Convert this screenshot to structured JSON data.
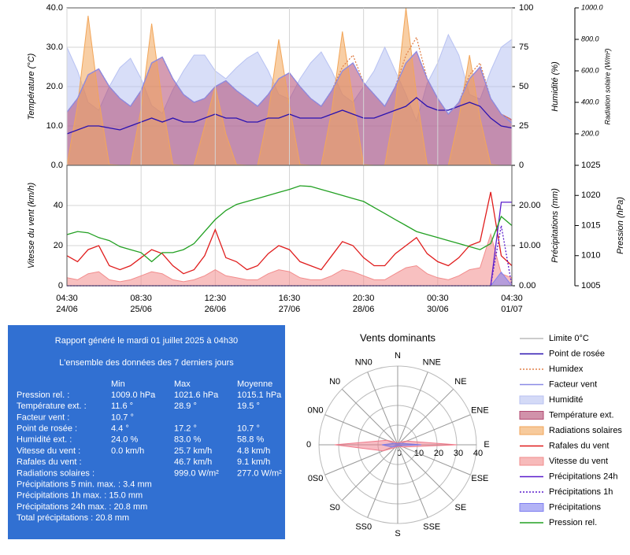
{
  "chart_data": [
    {
      "type": "line",
      "ylabel": "Température (°C)",
      "y2label": "Humidité (%)",
      "y3label": "Radiation solaire (W/m²)",
      "x": [
        "24/06 04:30",
        "24/06 08:30",
        "24/06 12:30",
        "24/06 16:30",
        "24/06 20:30",
        "25/06 00:30",
        "25/06 04:30",
        "25/06 08:30",
        "25/06 12:30",
        "25/06 16:30",
        "25/06 20:30",
        "26/06 00:30",
        "26/06 04:30",
        "26/06 08:30",
        "26/06 12:30",
        "26/06 16:30",
        "26/06 20:30",
        "27/06 00:30",
        "27/06 04:30",
        "27/06 08:30",
        "27/06 12:30",
        "27/06 16:30",
        "27/06 20:30",
        "28/06 00:30",
        "28/06 04:30",
        "28/06 08:30",
        "28/06 12:30",
        "28/06 16:30",
        "28/06 20:30",
        "29/06 00:30",
        "29/06 04:30",
        "29/06 08:30",
        "29/06 12:30",
        "29/06 16:30",
        "29/06 20:30",
        "30/06 00:30",
        "30/06 04:30",
        "30/06 08:30",
        "30/06 12:30",
        "30/06 16:30",
        "30/06 20:30",
        "01/07 00:30",
        "01/07 04:30"
      ],
      "ylim": [
        0,
        40
      ],
      "yticks": [
        {
          "value": 0,
          "label": "0.0"
        },
        {
          "value": 10,
          "label": "10.0"
        },
        {
          "value": 20,
          "label": "20.0"
        },
        {
          "value": 30,
          "label": "30.0"
        },
        {
          "value": 40,
          "label": "40.0"
        }
      ],
      "y2lim": [
        0,
        100
      ],
      "y2ticks": [
        0,
        25,
        50,
        75,
        100
      ],
      "y3lim": [
        0,
        1000
      ],
      "y3ticks": [
        {
          "value": 200,
          "label": "200.0"
        },
        {
          "value": 400,
          "label": "400.0"
        },
        {
          "value": 600,
          "label": "600.0"
        },
        {
          "value": 800,
          "label": "800.0"
        },
        {
          "value": 1000,
          "label": "1000.0"
        }
      ],
      "grid": true,
      "series": [
        {
          "name": "Limite 0°C",
          "color": "#bbbbbb",
          "style": "line",
          "axis": "y",
          "values": [
            0,
            0,
            0,
            0,
            0,
            0,
            0,
            0,
            0,
            0,
            0,
            0,
            0,
            0,
            0,
            0,
            0,
            0,
            0,
            0,
            0,
            0,
            0,
            0,
            0,
            0,
            0,
            0,
            0,
            0,
            0,
            0,
            0,
            0,
            0,
            0,
            0,
            0,
            0,
            0,
            0,
            0,
            0
          ]
        },
        {
          "name": "Point de rosée",
          "color": "#2a12b0",
          "style": "line",
          "axis": "y",
          "values": [
            8,
            9,
            10,
            10,
            9.5,
            9,
            10,
            11,
            12,
            11,
            12,
            11,
            11,
            12,
            13,
            12,
            12,
            11,
            11,
            12,
            12,
            13,
            12,
            12,
            12,
            13,
            14,
            13,
            12,
            12,
            13,
            14,
            15,
            17.2,
            15,
            14,
            14,
            15,
            16,
            15,
            12,
            10,
            9.5
          ]
        },
        {
          "name": "Humidex",
          "color": "#e0804a",
          "style": "dotted",
          "axis": "y",
          "values": [
            13.5,
            17,
            23,
            24.5,
            20,
            17,
            15,
            19,
            26,
            27.5,
            22,
            18,
            16,
            17,
            20,
            21.5,
            19,
            17,
            15,
            18,
            22,
            23.5,
            20,
            17,
            15,
            19,
            25,
            28,
            21,
            18,
            15,
            20,
            28,
            32.5,
            22,
            17,
            13,
            16,
            23,
            26,
            17,
            13,
            11.6
          ]
        },
        {
          "name": "Facteur vent",
          "color": "#8a8ae6",
          "style": "line",
          "axis": "y",
          "values": [
            13.5,
            17,
            23,
            24.5,
            20,
            17,
            15,
            19,
            26,
            27.5,
            22,
            18,
            16,
            17,
            20,
            21.5,
            19,
            17,
            15,
            18,
            22,
            23.5,
            20,
            17,
            15,
            19,
            24,
            26,
            21,
            18,
            15,
            20,
            26,
            28.9,
            22,
            17,
            13,
            16,
            22,
            25,
            17,
            13,
            10.7
          ]
        },
        {
          "name": "Humidité",
          "color": "#b8c2f2",
          "style": "area",
          "axis": "y2",
          "values": [
            75,
            60,
            40,
            35,
            50,
            62,
            68,
            55,
            38,
            33,
            48,
            60,
            70,
            70,
            60,
            55,
            62,
            68,
            72,
            60,
            45,
            42,
            55,
            65,
            72,
            60,
            45,
            40,
            50,
            60,
            75,
            60,
            45,
            28,
            52,
            65,
            83,
            70,
            45,
            42,
            60,
            75,
            80
          ]
        },
        {
          "name": "Température ext.",
          "color": "#b24a72",
          "style": "area",
          "axis": "y",
          "values": [
            13.5,
            17,
            23,
            24.5,
            20,
            17,
            15,
            19,
            26,
            27.5,
            22,
            18,
            16,
            17,
            20,
            21.5,
            19,
            17,
            15,
            18,
            22,
            23.5,
            20,
            17,
            15,
            19,
            24,
            26,
            21,
            18,
            15,
            20,
            26,
            28.9,
            22,
            17,
            13,
            16,
            22,
            25,
            17,
            13,
            11.6
          ]
        },
        {
          "name": "Radiations solaires",
          "color": "#f2a65a",
          "style": "area",
          "axis": "y3",
          "values": [
            0,
            380,
            950,
            420,
            5,
            0,
            0,
            360,
            900,
            400,
            5,
            0,
            0,
            250,
            500,
            200,
            5,
            0,
            0,
            330,
            800,
            380,
            5,
            0,
            0,
            350,
            850,
            420,
            5,
            0,
            0,
            380,
            999,
            450,
            5,
            0,
            0,
            300,
            700,
            300,
            5,
            0,
            0
          ]
        }
      ]
    },
    {
      "type": "line",
      "ylabel": "Vitesse du vent (km/h)",
      "y2label": "Précipitations (mm)",
      "y3label": "Pression (hPa)",
      "x": [
        "24/06 04:30",
        "24/06 08:30",
        "24/06 12:30",
        "24/06 16:30",
        "24/06 20:30",
        "25/06 00:30",
        "25/06 04:30",
        "25/06 08:30",
        "25/06 12:30",
        "25/06 16:30",
        "25/06 20:30",
        "26/06 00:30",
        "26/06 04:30",
        "26/06 08:30",
        "26/06 12:30",
        "26/06 16:30",
        "26/06 20:30",
        "27/06 00:30",
        "27/06 04:30",
        "27/06 08:30",
        "27/06 12:30",
        "27/06 16:30",
        "27/06 20:30",
        "28/06 00:30",
        "28/06 04:30",
        "28/06 08:30",
        "28/06 12:30",
        "28/06 16:30",
        "28/06 20:30",
        "29/06 00:30",
        "29/06 04:30",
        "29/06 08:30",
        "29/06 12:30",
        "29/06 16:30",
        "29/06 20:30",
        "30/06 00:30",
        "30/06 04:30",
        "30/06 08:30",
        "30/06 12:30",
        "30/06 16:30",
        "30/06 20:30",
        "01/07 00:30",
        "01/07 04:30"
      ],
      "xticks": [
        {
          "value": "24/06 04:30",
          "label": [
            "04:30",
            "24/06"
          ]
        },
        {
          "value": "25/06 08:30",
          "label": [
            "08:30",
            "25/06"
          ]
        },
        {
          "value": "26/06 12:30",
          "label": [
            "12:30",
            "26/06"
          ]
        },
        {
          "value": "27/06 16:30",
          "label": [
            "16:30",
            "27/06"
          ]
        },
        {
          "value": "28/06 20:30",
          "label": [
            "20:30",
            "28/06"
          ]
        },
        {
          "value": "30/06 00:30",
          "label": [
            "00:30",
            "30/06"
          ]
        },
        {
          "value": "01/07 04:30",
          "label": [
            "04:30",
            "01/07"
          ]
        }
      ],
      "ylim": [
        0,
        60
      ],
      "yticks": [
        0,
        20,
        40
      ],
      "y2lim": [
        0,
        30
      ],
      "y2ticks": [
        {
          "value": 0,
          "label": "0.00"
        },
        {
          "value": 10,
          "label": "10.00"
        },
        {
          "value": 20,
          "label": "20.00"
        }
      ],
      "y3lim": [
        1005,
        1025
      ],
      "y3ticks": [
        1005,
        1010,
        1015,
        1020,
        1025
      ],
      "grid": true,
      "series": [
        {
          "name": "Rafales du vent",
          "color": "#e01c1c",
          "style": "line",
          "axis": "y",
          "values": [
            15,
            12,
            18,
            20,
            10,
            8,
            10,
            14,
            18,
            16,
            10,
            6,
            8,
            15,
            28,
            14,
            12,
            8,
            10,
            16,
            20,
            18,
            12,
            10,
            8,
            15,
            22,
            20,
            14,
            10,
            10,
            16,
            20,
            24,
            16,
            12,
            10,
            14,
            20,
            22,
            46.7,
            15,
            10
          ]
        },
        {
          "name": "Vitesse du vent",
          "color": "#f28c8c",
          "style": "area",
          "axis": "y",
          "values": [
            4,
            3,
            6,
            7,
            3,
            2,
            3,
            5,
            7,
            6,
            3,
            2,
            3,
            5,
            8,
            5,
            4,
            3,
            3,
            6,
            8,
            7,
            4,
            3,
            3,
            5,
            8,
            7,
            5,
            3,
            3,
            6,
            9,
            10,
            6,
            4,
            3,
            5,
            8,
            9,
            25.7,
            6,
            4
          ]
        },
        {
          "name": "Précipitations 24h",
          "color": "#5a1ccc",
          "style": "line",
          "axis": "y2",
          "values": [
            0,
            0,
            0,
            0,
            0,
            0,
            0,
            0,
            0,
            0,
            0,
            0,
            0,
            0,
            0,
            0,
            0,
            0,
            0,
            0,
            0,
            0,
            0,
            0,
            0,
            0,
            0,
            0,
            0,
            0,
            0,
            0,
            0,
            0,
            0,
            0,
            0,
            0,
            0,
            0,
            0,
            20.8,
            20.8
          ]
        },
        {
          "name": "Précipitations 1h",
          "color": "#5a1ccc",
          "style": "dotted",
          "axis": "y2",
          "values": [
            0,
            0,
            0,
            0,
            0,
            0,
            0,
            0,
            0,
            0,
            0,
            0,
            0,
            0,
            0,
            0,
            0,
            0,
            0,
            0,
            0,
            0,
            0,
            0,
            0,
            0,
            0,
            0,
            0,
            0,
            0,
            0,
            0,
            0,
            0,
            0,
            0,
            0,
            0,
            0,
            0,
            15,
            0
          ]
        },
        {
          "name": "Précipitations",
          "color": "#8080f0",
          "style": "area",
          "axis": "y2",
          "values": [
            0,
            0,
            0,
            0,
            0,
            0,
            0,
            0,
            0,
            0,
            0,
            0,
            0,
            0,
            0,
            0,
            0,
            0,
            0,
            0,
            0,
            0,
            0,
            0,
            0,
            0,
            0,
            0,
            0,
            0,
            0,
            0,
            0,
            0,
            0,
            0,
            0,
            0,
            0,
            0,
            0,
            3.4,
            0
          ]
        },
        {
          "name": "Pression rel.",
          "color": "#22a022",
          "style": "line",
          "axis": "y3",
          "values": [
            1013.5,
            1014,
            1013.8,
            1013,
            1012.5,
            1011.5,
            1011,
            1010.5,
            1009,
            1010.5,
            1010.5,
            1011,
            1012,
            1014,
            1016,
            1017.5,
            1018.5,
            1019,
            1019.5,
            1020,
            1020.5,
            1021,
            1021.6,
            1021.5,
            1021,
            1020.5,
            1020,
            1019.5,
            1019,
            1018,
            1017,
            1016,
            1015,
            1014,
            1013.5,
            1013,
            1012.5,
            1012,
            1011.5,
            1011,
            1012,
            1016.5,
            1015
          ]
        }
      ]
    },
    {
      "type": "radar",
      "title": "Vents dominants",
      "categories": [
        "N",
        "NNE",
        "NE",
        "ENE",
        "E",
        "ESE",
        "SE",
        "SSE",
        "S",
        "SS0",
        "S0",
        "0S0",
        "0",
        "0N0",
        "N0",
        "NN0"
      ],
      "rlim": [
        0,
        40
      ],
      "rticks": [
        0,
        10,
        20,
        30,
        40
      ],
      "series": [
        {
          "color": "#f07a8a",
          "values": [
            1,
            1,
            2,
            5,
            30,
            3,
            1,
            1,
            1,
            1,
            2,
            8,
            32,
            6,
            2,
            1
          ]
        },
        {
          "color": "#7a7ae8",
          "values": [
            0.5,
            0.5,
            1,
            2,
            12,
            1,
            0.5,
            0.5,
            0.5,
            0.5,
            1,
            3,
            8,
            2,
            1,
            0.5
          ]
        }
      ]
    }
  ],
  "report": {
    "title": "Rapport généré le mardi 01 juillet 2025 à 04h30",
    "subtitle": "L'ensemble des données des 7 derniers jours",
    "headers": [
      "Min",
      "Max",
      "Moyenne"
    ],
    "rows": [
      [
        "Pression rel. :",
        "1009.0 hPa",
        "1021.6 hPa",
        "1015.1 hPa"
      ],
      [
        "Température ext. :",
        "11.6 °",
        "28.9 °",
        "19.5 °"
      ],
      [
        "Facteur vent :",
        "10.7 °",
        null,
        null
      ],
      [
        "Point de rosée :",
        "4.4 °",
        "17.2 °",
        "10.7 °"
      ],
      [
        "Humidité ext. :",
        "24.0 %",
        "83.0 %",
        "58.8 %"
      ],
      [
        "Vitesse du vent :",
        "0.0 km/h",
        "25.7 km/h",
        "4.8 km/h"
      ],
      [
        "Rafales du vent :",
        null,
        "46.7 km/h",
        "9.1 km/h"
      ],
      [
        "Radiations solaires :",
        null,
        "999.0 W/m²",
        "277.0 W/m²"
      ]
    ],
    "notes": [
      "Précipitations 5 min. max. : 3.4 mm",
      "Précipitations 1h max. : 15.0 mm",
      "Précipitations 24h max. : 20.8 mm",
      "Total précipitations : 20.8 mm"
    ]
  }
}
